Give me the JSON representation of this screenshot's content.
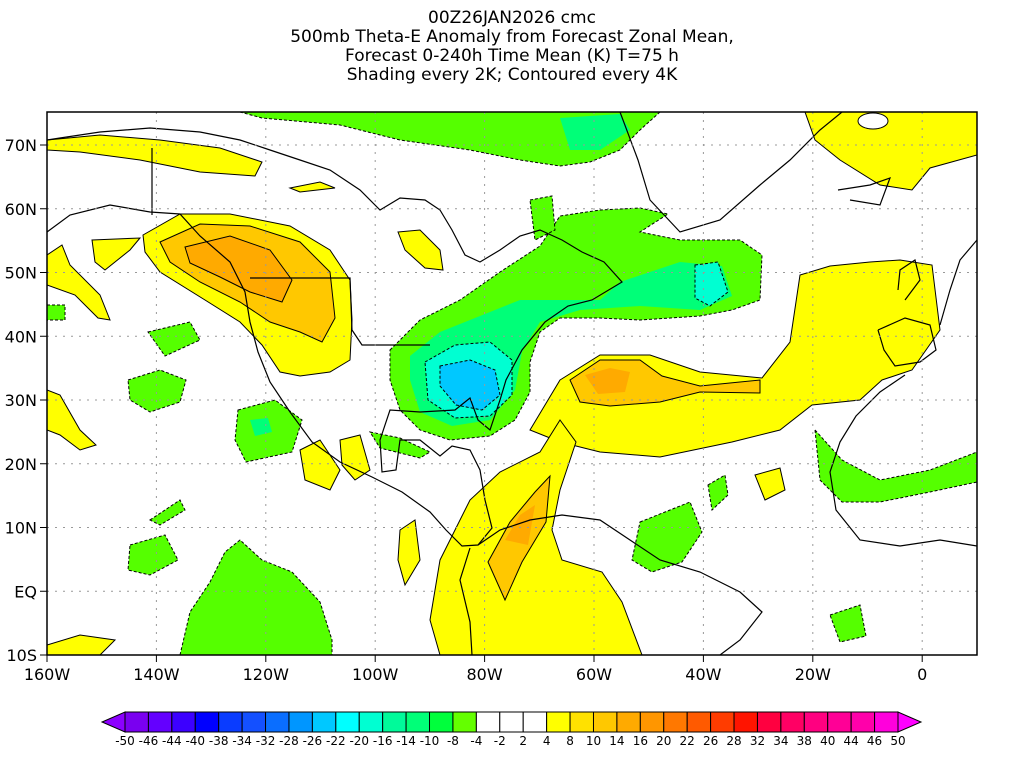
{
  "title": {
    "line1": "00Z26JAN2026 cmc",
    "line2": "500mb Theta-E Anomaly from Forecast Zonal Mean,",
    "line3": "Forecast 0-240h Time Mean (K) T=75 h",
    "line4": "Shading every 2K; Contoured every 4K"
  },
  "axes": {
    "lon_labels": [
      "160W",
      "140W",
      "120W",
      "100W",
      "80W",
      "60W",
      "40W",
      "20W",
      "0"
    ],
    "lat_labels": [
      "70N",
      "60N",
      "50N",
      "40N",
      "30N",
      "20N",
      "10N",
      "EQ",
      "10S"
    ]
  },
  "colorbar": {
    "labels": [
      "-50",
      "-46",
      "-44",
      "-40",
      "-38",
      "-34",
      "-32",
      "-28",
      "-26",
      "-22",
      "-20",
      "-16",
      "-14",
      "-10",
      "-8",
      "-4",
      "-2",
      "2",
      "4",
      "8",
      "10",
      "14",
      "16",
      "20",
      "22",
      "26",
      "28",
      "32",
      "34",
      "38",
      "40",
      "44",
      "46",
      "50"
    ],
    "colors": [
      "#7a00f0",
      "#6400ff",
      "#3c00ff",
      "#0000ff",
      "#0a3cff",
      "#1450ff",
      "#0a6eff",
      "#0096ff",
      "#00c8ff",
      "#00ffff",
      "#00ffd2",
      "#00fa9a",
      "#00ff78",
      "#00ff3c",
      "#64ff00",
      "#ffffff",
      "#ffffff",
      "#ffffff",
      "#ffff00",
      "#ffe100",
      "#ffc800",
      "#ffaa00",
      "#ff9600",
      "#ff7800",
      "#ff5a00",
      "#ff3c00",
      "#ff1400",
      "#ff0040",
      "#ff0064",
      "#ff0080",
      "#ff0096",
      "#ff00aa",
      "#ff00dc"
    ],
    "low_arrow_color": "#8c00ff",
    "high_arrow_color": "#ff00ff"
  }
}
